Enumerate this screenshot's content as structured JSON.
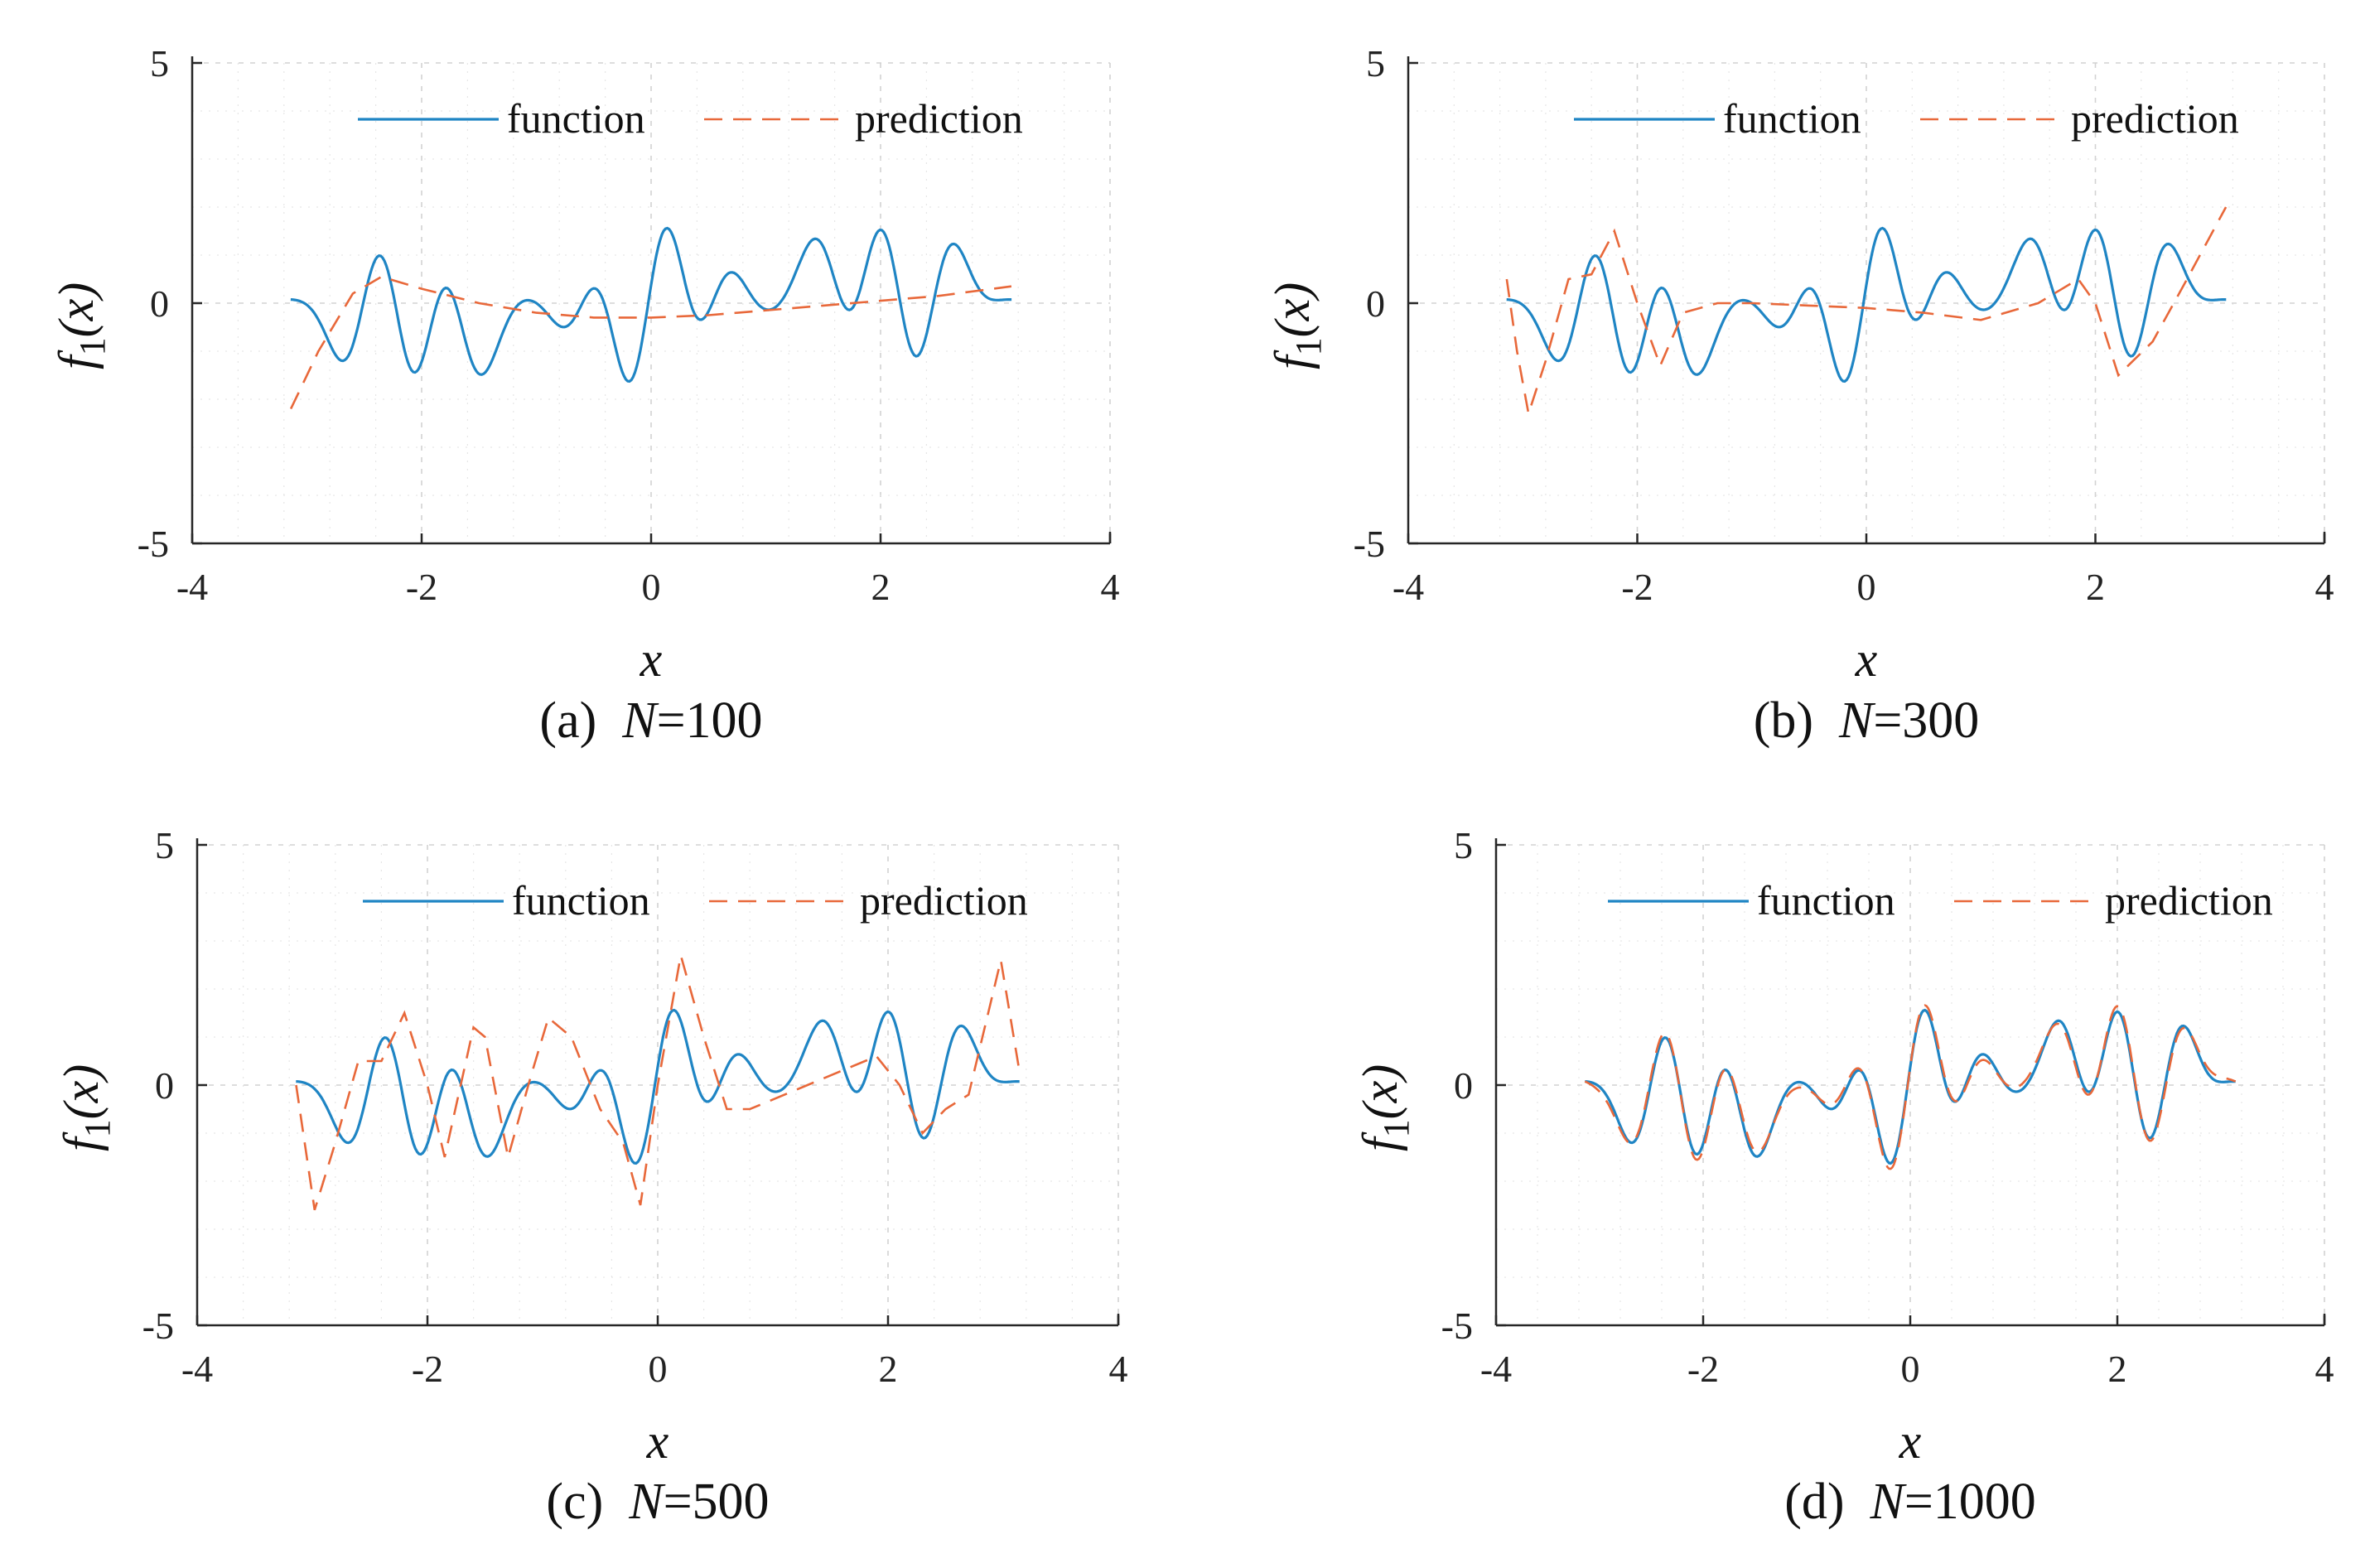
{
  "chart_data": [
    {
      "type": "line",
      "caption": {
        "label": "(a)",
        "n_symbol": "N",
        "n_value": "=100"
      },
      "xlabel": "x",
      "ylabel": {
        "main": "f",
        "sub": "1",
        "arg": "(x)"
      },
      "xlim": [
        -4,
        4
      ],
      "ylim": [
        -5,
        5
      ],
      "xticks": [
        "-4",
        "-2",
        "0",
        "2",
        "4"
      ],
      "yticks": [
        "-5",
        "0",
        "5"
      ],
      "grid": true,
      "legend": {
        "position": "top-center",
        "entries": [
          "function",
          "prediction"
        ]
      },
      "series": [
        {
          "name": "function",
          "style": "solid",
          "color": "#1f85c4",
          "x": [],
          "y": []
        },
        {
          "name": "prediction",
          "style": "dashed",
          "color": "#e8683a",
          "x": [
            -3.14,
            -2.9,
            -2.6,
            -2.35,
            -2.0,
            -1.5,
            -1.0,
            -0.5,
            0.0,
            0.5,
            1.0,
            1.5,
            2.0,
            2.5,
            3.14
          ],
          "y": [
            -2.2,
            -1.0,
            0.2,
            0.55,
            0.3,
            0.0,
            -0.2,
            -0.3,
            -0.3,
            -0.25,
            -0.15,
            -0.05,
            0.05,
            0.15,
            0.35
          ]
        }
      ]
    },
    {
      "type": "line",
      "caption": {
        "label": "(b)",
        "n_symbol": "N",
        "n_value": "=300"
      },
      "xlabel": "x",
      "ylabel": {
        "main": "f",
        "sub": "1",
        "arg": "(x)"
      },
      "xlim": [
        -4,
        4
      ],
      "ylim": [
        -5,
        5
      ],
      "xticks": [
        "-4",
        "-2",
        "0",
        "2",
        "4"
      ],
      "yticks": [
        "-5",
        "0",
        "5"
      ],
      "grid": true,
      "legend": {
        "position": "top-center",
        "entries": [
          "function",
          "prediction"
        ]
      },
      "series": [
        {
          "name": "function",
          "style": "solid",
          "color": "#1f85c4",
          "x": [],
          "y": []
        },
        {
          "name": "prediction",
          "style": "dashed",
          "color": "#e8683a",
          "x": [
            -3.14,
            -3.05,
            -2.95,
            -2.8,
            -2.6,
            -2.4,
            -2.2,
            -2.0,
            -1.8,
            -1.6,
            -1.3,
            -1.0,
            -0.5,
            0.0,
            0.5,
            1.0,
            1.5,
            1.85,
            2.0,
            2.2,
            2.5,
            2.8,
            3.14
          ],
          "y": [
            0.5,
            -1.0,
            -2.3,
            -1.2,
            0.5,
            0.6,
            1.5,
            0.0,
            -1.3,
            -0.2,
            0.0,
            0.0,
            -0.05,
            -0.1,
            -0.2,
            -0.35,
            0.0,
            0.5,
            0.0,
            -1.5,
            -0.8,
            0.5,
            2.0
          ]
        }
      ]
    },
    {
      "type": "line",
      "caption": {
        "label": "(c)",
        "n_symbol": "N",
        "n_value": "=500"
      },
      "xlabel": "x",
      "ylabel": {
        "main": "f",
        "sub": "1",
        "arg": "(x)"
      },
      "xlim": [
        -4,
        4
      ],
      "ylim": [
        -5,
        5
      ],
      "xticks": [
        "-4",
        "-2",
        "0",
        "2",
        "4"
      ],
      "yticks": [
        "-5",
        "0",
        "5"
      ],
      "grid": true,
      "legend": {
        "position": "top-center",
        "entries": [
          "function",
          "prediction"
        ]
      },
      "series": [
        {
          "name": "function",
          "style": "solid",
          "color": "#1f85c4",
          "x": [],
          "y": []
        },
        {
          "name": "prediction",
          "style": "dashed",
          "color": "#e8683a",
          "x": [
            -3.14,
            -2.98,
            -2.8,
            -2.6,
            -2.4,
            -2.2,
            -2.0,
            -1.85,
            -1.6,
            -1.5,
            -1.3,
            -1.1,
            -0.95,
            -0.75,
            -0.5,
            -0.3,
            -0.15,
            0.0,
            0.2,
            0.4,
            0.6,
            0.8,
            1.0,
            1.3,
            1.6,
            1.9,
            2.1,
            2.3,
            2.5,
            2.7,
            2.98,
            3.14
          ],
          "y": [
            0.0,
            -2.6,
            -1.2,
            0.5,
            0.5,
            1.5,
            0.0,
            -1.5,
            1.2,
            1.0,
            -1.5,
            0.2,
            1.4,
            1.0,
            -0.5,
            -1.2,
            -2.5,
            0.0,
            2.7,
            1.0,
            -0.5,
            -0.5,
            -0.3,
            0.0,
            0.3,
            0.6,
            0.0,
            -1.0,
            -0.5,
            -0.2,
            2.6,
            0.3
          ]
        }
      ]
    },
    {
      "type": "line",
      "caption": {
        "label": "(d)",
        "n_symbol": "N",
        "n_value": "=1000"
      },
      "xlabel": "x",
      "ylabel": {
        "main": "f",
        "sub": "1",
        "arg": "(x)"
      },
      "xlim": [
        -4,
        4
      ],
      "ylim": [
        -5,
        5
      ],
      "xticks": [
        "-4",
        "-2",
        "0",
        "2",
        "4"
      ],
      "yticks": [
        "-5",
        "0",
        "5"
      ],
      "grid": true,
      "legend": {
        "position": "top-center",
        "entries": [
          "function",
          "prediction"
        ]
      },
      "series": [
        {
          "name": "function",
          "style": "solid",
          "color": "#1f85c4",
          "x": [],
          "y": []
        },
        {
          "name": "prediction",
          "style": "dashed",
          "color": "#e8683a",
          "x": [],
          "y": []
        }
      ]
    }
  ]
}
